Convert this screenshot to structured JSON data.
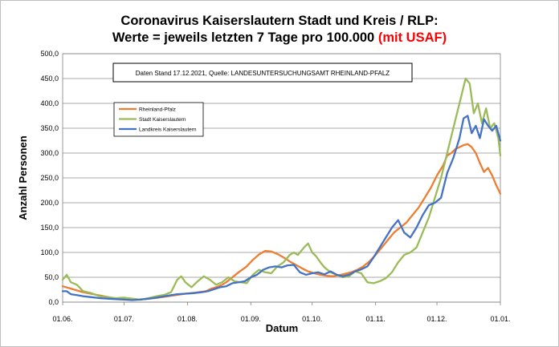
{
  "chart_data": {
    "type": "line",
    "title_line1": "Coronavirus Kaiserslautern Stadt und Kreis / RLP:",
    "title_line2_black": "Werte = jeweils letzten 7 Tage pro 100.000 ",
    "title_line2_red": "(mit USAF)",
    "note": "Daten Stand 17.12.2021, Quelle: LANDESUNTERSUCHUNGSAMT RHEINLAND-PFALZ",
    "xlabel": "Datum",
    "ylabel": "Anzahl Personen",
    "x_ticks": [
      "01.06.",
      "01.07.",
      "01.08.",
      "01.09.",
      "01.10.",
      "01.11.",
      "01.12.",
      "01.01."
    ],
    "x_tick_days": [
      0,
      30,
      61,
      92,
      122,
      153,
      183,
      214
    ],
    "y_ticks": [
      "0,0",
      "50,0",
      "100,0",
      "150,0",
      "200,0",
      "250,0",
      "300,0",
      "350,0",
      "400,0",
      "450,0",
      "500,0"
    ],
    "ylim": [
      0,
      500
    ],
    "grid": "horizontal",
    "legend_position": "top-left",
    "series": [
      {
        "name": "Rheinland-Pfalz",
        "color": "#ed7d31",
        "points": [
          [
            0,
            32
          ],
          [
            5,
            26
          ],
          [
            10,
            20
          ],
          [
            15,
            16
          ],
          [
            20,
            12
          ],
          [
            25,
            8
          ],
          [
            30,
            6
          ],
          [
            35,
            5
          ],
          [
            40,
            6
          ],
          [
            45,
            8
          ],
          [
            50,
            11
          ],
          [
            55,
            14
          ],
          [
            60,
            17
          ],
          [
            65,
            19
          ],
          [
            70,
            22
          ],
          [
            72,
            26
          ],
          [
            75,
            30
          ],
          [
            78,
            35
          ],
          [
            80,
            40
          ],
          [
            83,
            50
          ],
          [
            86,
            60
          ],
          [
            90,
            72
          ],
          [
            93,
            85
          ],
          [
            96,
            96
          ],
          [
            99,
            103
          ],
          [
            102,
            102
          ],
          [
            105,
            97
          ],
          [
            108,
            90
          ],
          [
            111,
            82
          ],
          [
            114,
            75
          ],
          [
            117,
            68
          ],
          [
            120,
            62
          ],
          [
            123,
            58
          ],
          [
            126,
            55
          ],
          [
            129,
            53
          ],
          [
            132,
            52
          ],
          [
            135,
            54
          ],
          [
            138,
            57
          ],
          [
            141,
            60
          ],
          [
            144,
            65
          ],
          [
            147,
            72
          ],
          [
            150,
            82
          ],
          [
            153,
            95
          ],
          [
            156,
            110
          ],
          [
            159,
            125
          ],
          [
            162,
            140
          ],
          [
            165,
            150
          ],
          [
            168,
            160
          ],
          [
            171,
            175
          ],
          [
            174,
            190
          ],
          [
            177,
            210
          ],
          [
            180,
            230
          ],
          [
            183,
            255
          ],
          [
            186,
            275
          ],
          [
            188,
            295
          ],
          [
            190,
            300
          ],
          [
            192,
            308
          ],
          [
            194,
            312
          ],
          [
            196,
            316
          ],
          [
            198,
            318
          ],
          [
            200,
            312
          ],
          [
            202,
            300
          ],
          [
            204,
            280
          ],
          [
            206,
            262
          ],
          [
            208,
            270
          ],
          [
            210,
            255
          ],
          [
            212,
            235
          ],
          [
            214,
            218
          ]
        ]
      },
      {
        "name": "Stadt Kaiserslautern",
        "color": "#9bbb59",
        "points": [
          [
            0,
            45
          ],
          [
            2,
            55
          ],
          [
            4,
            40
          ],
          [
            7,
            35
          ],
          [
            10,
            22
          ],
          [
            14,
            18
          ],
          [
            18,
            12
          ],
          [
            22,
            10
          ],
          [
            26,
            8
          ],
          [
            30,
            9
          ],
          [
            34,
            7
          ],
          [
            38,
            5
          ],
          [
            42,
            8
          ],
          [
            46,
            12
          ],
          [
            50,
            15
          ],
          [
            53,
            20
          ],
          [
            56,
            45
          ],
          [
            58,
            52
          ],
          [
            60,
            40
          ],
          [
            63,
            30
          ],
          [
            66,
            42
          ],
          [
            69,
            52
          ],
          [
            72,
            45
          ],
          [
            75,
            35
          ],
          [
            78,
            40
          ],
          [
            81,
            50
          ],
          [
            84,
            42
          ],
          [
            87,
            40
          ],
          [
            90,
            38
          ],
          [
            93,
            55
          ],
          [
            96,
            65
          ],
          [
            99,
            60
          ],
          [
            102,
            58
          ],
          [
            105,
            72
          ],
          [
            108,
            80
          ],
          [
            111,
            95
          ],
          [
            113,
            100
          ],
          [
            115,
            95
          ],
          [
            118,
            110
          ],
          [
            120,
            118
          ],
          [
            122,
            100
          ],
          [
            124,
            92
          ],
          [
            126,
            80
          ],
          [
            128,
            70
          ],
          [
            131,
            60
          ],
          [
            134,
            55
          ],
          [
            137,
            50
          ],
          [
            140,
            52
          ],
          [
            143,
            62
          ],
          [
            146,
            58
          ],
          [
            149,
            40
          ],
          [
            152,
            38
          ],
          [
            155,
            42
          ],
          [
            158,
            48
          ],
          [
            161,
            60
          ],
          [
            164,
            80
          ],
          [
            167,
            95
          ],
          [
            170,
            100
          ],
          [
            173,
            110
          ],
          [
            176,
            140
          ],
          [
            179,
            170
          ],
          [
            182,
            210
          ],
          [
            185,
            250
          ],
          [
            188,
            300
          ],
          [
            191,
            350
          ],
          [
            194,
            400
          ],
          [
            197,
            450
          ],
          [
            199,
            440
          ],
          [
            201,
            380
          ],
          [
            203,
            400
          ],
          [
            205,
            360
          ],
          [
            207,
            390
          ],
          [
            209,
            350
          ],
          [
            211,
            360
          ],
          [
            213,
            330
          ],
          [
            214,
            295
          ]
        ]
      },
      {
        "name": "Landkreis Kaiserslautern",
        "color": "#4472c4",
        "points": [
          [
            0,
            22
          ],
          [
            2,
            22
          ],
          [
            4,
            16
          ],
          [
            7,
            14
          ],
          [
            10,
            12
          ],
          [
            14,
            10
          ],
          [
            18,
            8
          ],
          [
            22,
            7
          ],
          [
            26,
            6
          ],
          [
            30,
            5
          ],
          [
            34,
            4
          ],
          [
            38,
            5
          ],
          [
            42,
            7
          ],
          [
            46,
            9
          ],
          [
            50,
            12
          ],
          [
            53,
            14
          ],
          [
            56,
            16
          ],
          [
            60,
            17
          ],
          [
            64,
            18
          ],
          [
            68,
            20
          ],
          [
            71,
            22
          ],
          [
            74,
            26
          ],
          [
            77,
            30
          ],
          [
            80,
            32
          ],
          [
            83,
            38
          ],
          [
            86,
            40
          ],
          [
            89,
            42
          ],
          [
            92,
            50
          ],
          [
            95,
            55
          ],
          [
            98,
            65
          ],
          [
            101,
            70
          ],
          [
            104,
            72
          ],
          [
            107,
            70
          ],
          [
            110,
            74
          ],
          [
            113,
            75
          ],
          [
            116,
            60
          ],
          [
            119,
            55
          ],
          [
            122,
            58
          ],
          [
            125,
            60
          ],
          [
            128,
            56
          ],
          [
            131,
            62
          ],
          [
            134,
            55
          ],
          [
            137,
            52
          ],
          [
            140,
            55
          ],
          [
            143,
            62
          ],
          [
            146,
            66
          ],
          [
            149,
            72
          ],
          [
            152,
            90
          ],
          [
            155,
            110
          ],
          [
            158,
            130
          ],
          [
            161,
            150
          ],
          [
            164,
            165
          ],
          [
            167,
            140
          ],
          [
            170,
            130
          ],
          [
            173,
            150
          ],
          [
            176,
            175
          ],
          [
            179,
            195
          ],
          [
            182,
            200
          ],
          [
            185,
            210
          ],
          [
            188,
            260
          ],
          [
            191,
            290
          ],
          [
            194,
            330
          ],
          [
            196,
            370
          ],
          [
            198,
            375
          ],
          [
            200,
            340
          ],
          [
            202,
            355
          ],
          [
            204,
            330
          ],
          [
            206,
            368
          ],
          [
            208,
            355
          ],
          [
            210,
            345
          ],
          [
            212,
            355
          ],
          [
            214,
            325
          ]
        ]
      }
    ]
  }
}
